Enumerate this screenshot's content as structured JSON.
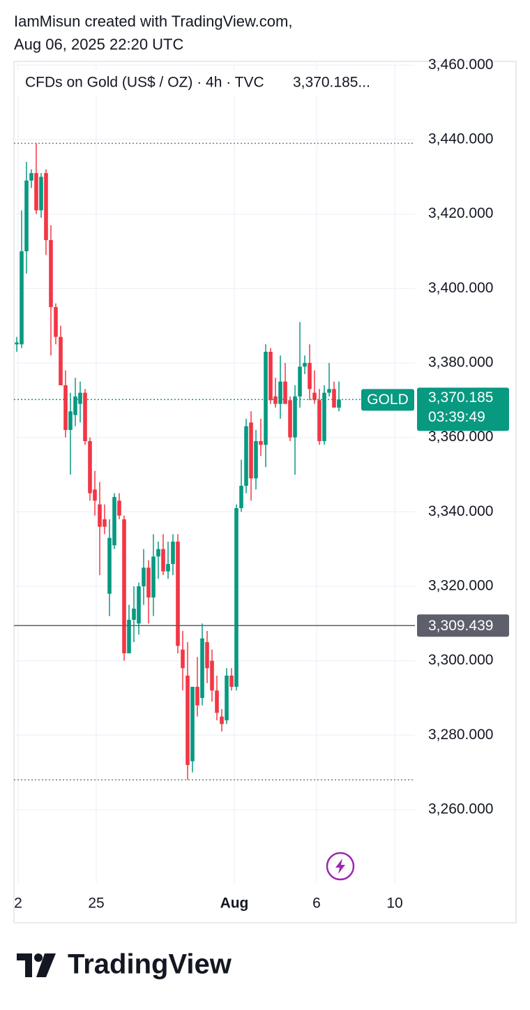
{
  "header": {
    "line1": "IamMisun created with TradingView.com,",
    "line2": "Aug 06, 2025 22:20 UTC"
  },
  "chart_data": {
    "type": "candlestick",
    "title": "CFDs on Gold (US$ / OZ) · 4h · TVC",
    "title_price": "3,370.185...",
    "up_color": "#089981",
    "down_color": "#f23645",
    "open": [
      3385,
      3385,
      3410,
      3429,
      3431,
      3421,
      3431,
      3413,
      3395,
      3387,
      3374,
      3362,
      3366,
      3369,
      3372,
      3359,
      3346,
      3342,
      3338,
      3318,
      3331,
      3343,
      3338,
      3302,
      3311,
      3310,
      3320,
      3325,
      3317,
      3328,
      3330,
      3324,
      3326,
      3332,
      3303,
      3296,
      3273,
      3293,
      3290,
      3305,
      3300,
      3292,
      3285,
      3284,
      3296,
      3293,
      3341,
      3347,
      3364,
      3349,
      3359,
      3358,
      3383,
      3371,
      3369,
      3375,
      3370,
      3360,
      3371,
      3379,
      3380,
      3372,
      3370,
      3359,
      3372,
      3373,
      3368
    ],
    "high": [
      3387,
      3421,
      3434,
      3432,
      3439,
      3431,
      3432,
      3417,
      3396,
      3390,
      3378,
      3372,
      3376,
      3375,
      3373,
      3360,
      3351,
      3348,
      3342,
      3338,
      3345,
      3345,
      3339,
      3315,
      3320,
      3321,
      3330,
      3327,
      3334,
      3332,
      3334,
      3332,
      3334,
      3334,
      3308,
      3305,
      3293,
      3301,
      3310,
      3308,
      3303,
      3296,
      3287,
      3298,
      3298,
      3342,
      3354,
      3365,
      3367,
      3362,
      3365,
      3385,
      3384,
      3376,
      3382,
      3380,
      3371,
      3374,
      3391,
      3382,
      3385,
      3378,
      3373,
      3374,
      3380,
      3375,
      3375
    ],
    "low": [
      3383,
      3384,
      3404,
      3427,
      3420,
      3419,
      3409,
      3382,
      3385,
      3374,
      3360,
      3350,
      3363,
      3364,
      3358,
      3343,
      3339,
      3323,
      3334,
      3312,
      3330,
      3338,
      3300,
      3302,
      3305,
      3307,
      3315,
      3310,
      3312,
      3322,
      3323,
      3322,
      3323,
      3302,
      3292,
      3268,
      3270,
      3285,
      3288,
      3294,
      3289,
      3284,
      3281,
      3283,
      3292,
      3292,
      3340,
      3345,
      3343,
      3346,
      3355,
      3352,
      3369,
      3368,
      3365,
      3369,
      3359,
      3350,
      3368,
      3377,
      3370,
      3369,
      3358,
      3358,
      3371,
      3368,
      3367
    ],
    "close": [
      3385.5,
      3410,
      3429,
      3431,
      3421,
      3430,
      3413,
      3395,
      3387,
      3374,
      3362,
      3367,
      3371,
      3372,
      3359,
      3345,
      3343,
      3336,
      3336,
      3333,
      3344,
      3339,
      3302,
      3311,
      3314,
      3320,
      3325,
      3317,
      3328,
      3330,
      3324,
      3326,
      3332,
      3304,
      3298,
      3272,
      3293,
      3288,
      3306,
      3298,
      3292,
      3286,
      3283,
      3296,
      3293,
      3341,
      3347,
      3363,
      3349,
      3359,
      3358,
      3383,
      3370,
      3369,
      3375,
      3369,
      3360,
      3371,
      3379,
      3380,
      3373,
      3370,
      3359,
      3372,
      3373,
      3368,
      3370.185
    ],
    "xlim": [
      -0.57,
      81.57
    ],
    "xticks": [
      {
        "value": 0.29,
        "label": "2"
      },
      {
        "value": 16.29,
        "label": "25"
      },
      {
        "value": 44.57,
        "label": "Aug"
      },
      {
        "value": 61.43,
        "label": "6"
      },
      {
        "value": 77.43,
        "label": "10"
      }
    ],
    "ylim": [
      3240.3,
      3461
    ],
    "yticks": [
      {
        "value": 3260,
        "label": "3,260.000"
      },
      {
        "value": 3280,
        "label": "3,280.000"
      },
      {
        "value": 3300,
        "label": "3,300.000"
      },
      {
        "value": 3320,
        "label": "3,320.000"
      },
      {
        "value": 3340,
        "label": "3,340.000"
      },
      {
        "value": 3360,
        "label": "3,360.000"
      },
      {
        "value": 3380,
        "label": "3,380.000"
      },
      {
        "value": 3400,
        "label": "3,400.000"
      },
      {
        "value": 3420,
        "label": "3,420.000"
      },
      {
        "value": 3440,
        "label": "3,440.000"
      },
      {
        "value": 3460,
        "label": "3,460.000"
      }
    ],
    "grid": true,
    "high_line": 3439,
    "low_line": 3268,
    "last_price": {
      "value": 3370.185,
      "label": "3,370.185",
      "symbol": "GOLD",
      "countdown": "03:39:49",
      "color": "#089981"
    },
    "reference_line": {
      "value": 3309.439,
      "label": "3,309.439",
      "color": "#5d606b"
    }
  },
  "footer": {
    "brand": "TradingView"
  }
}
